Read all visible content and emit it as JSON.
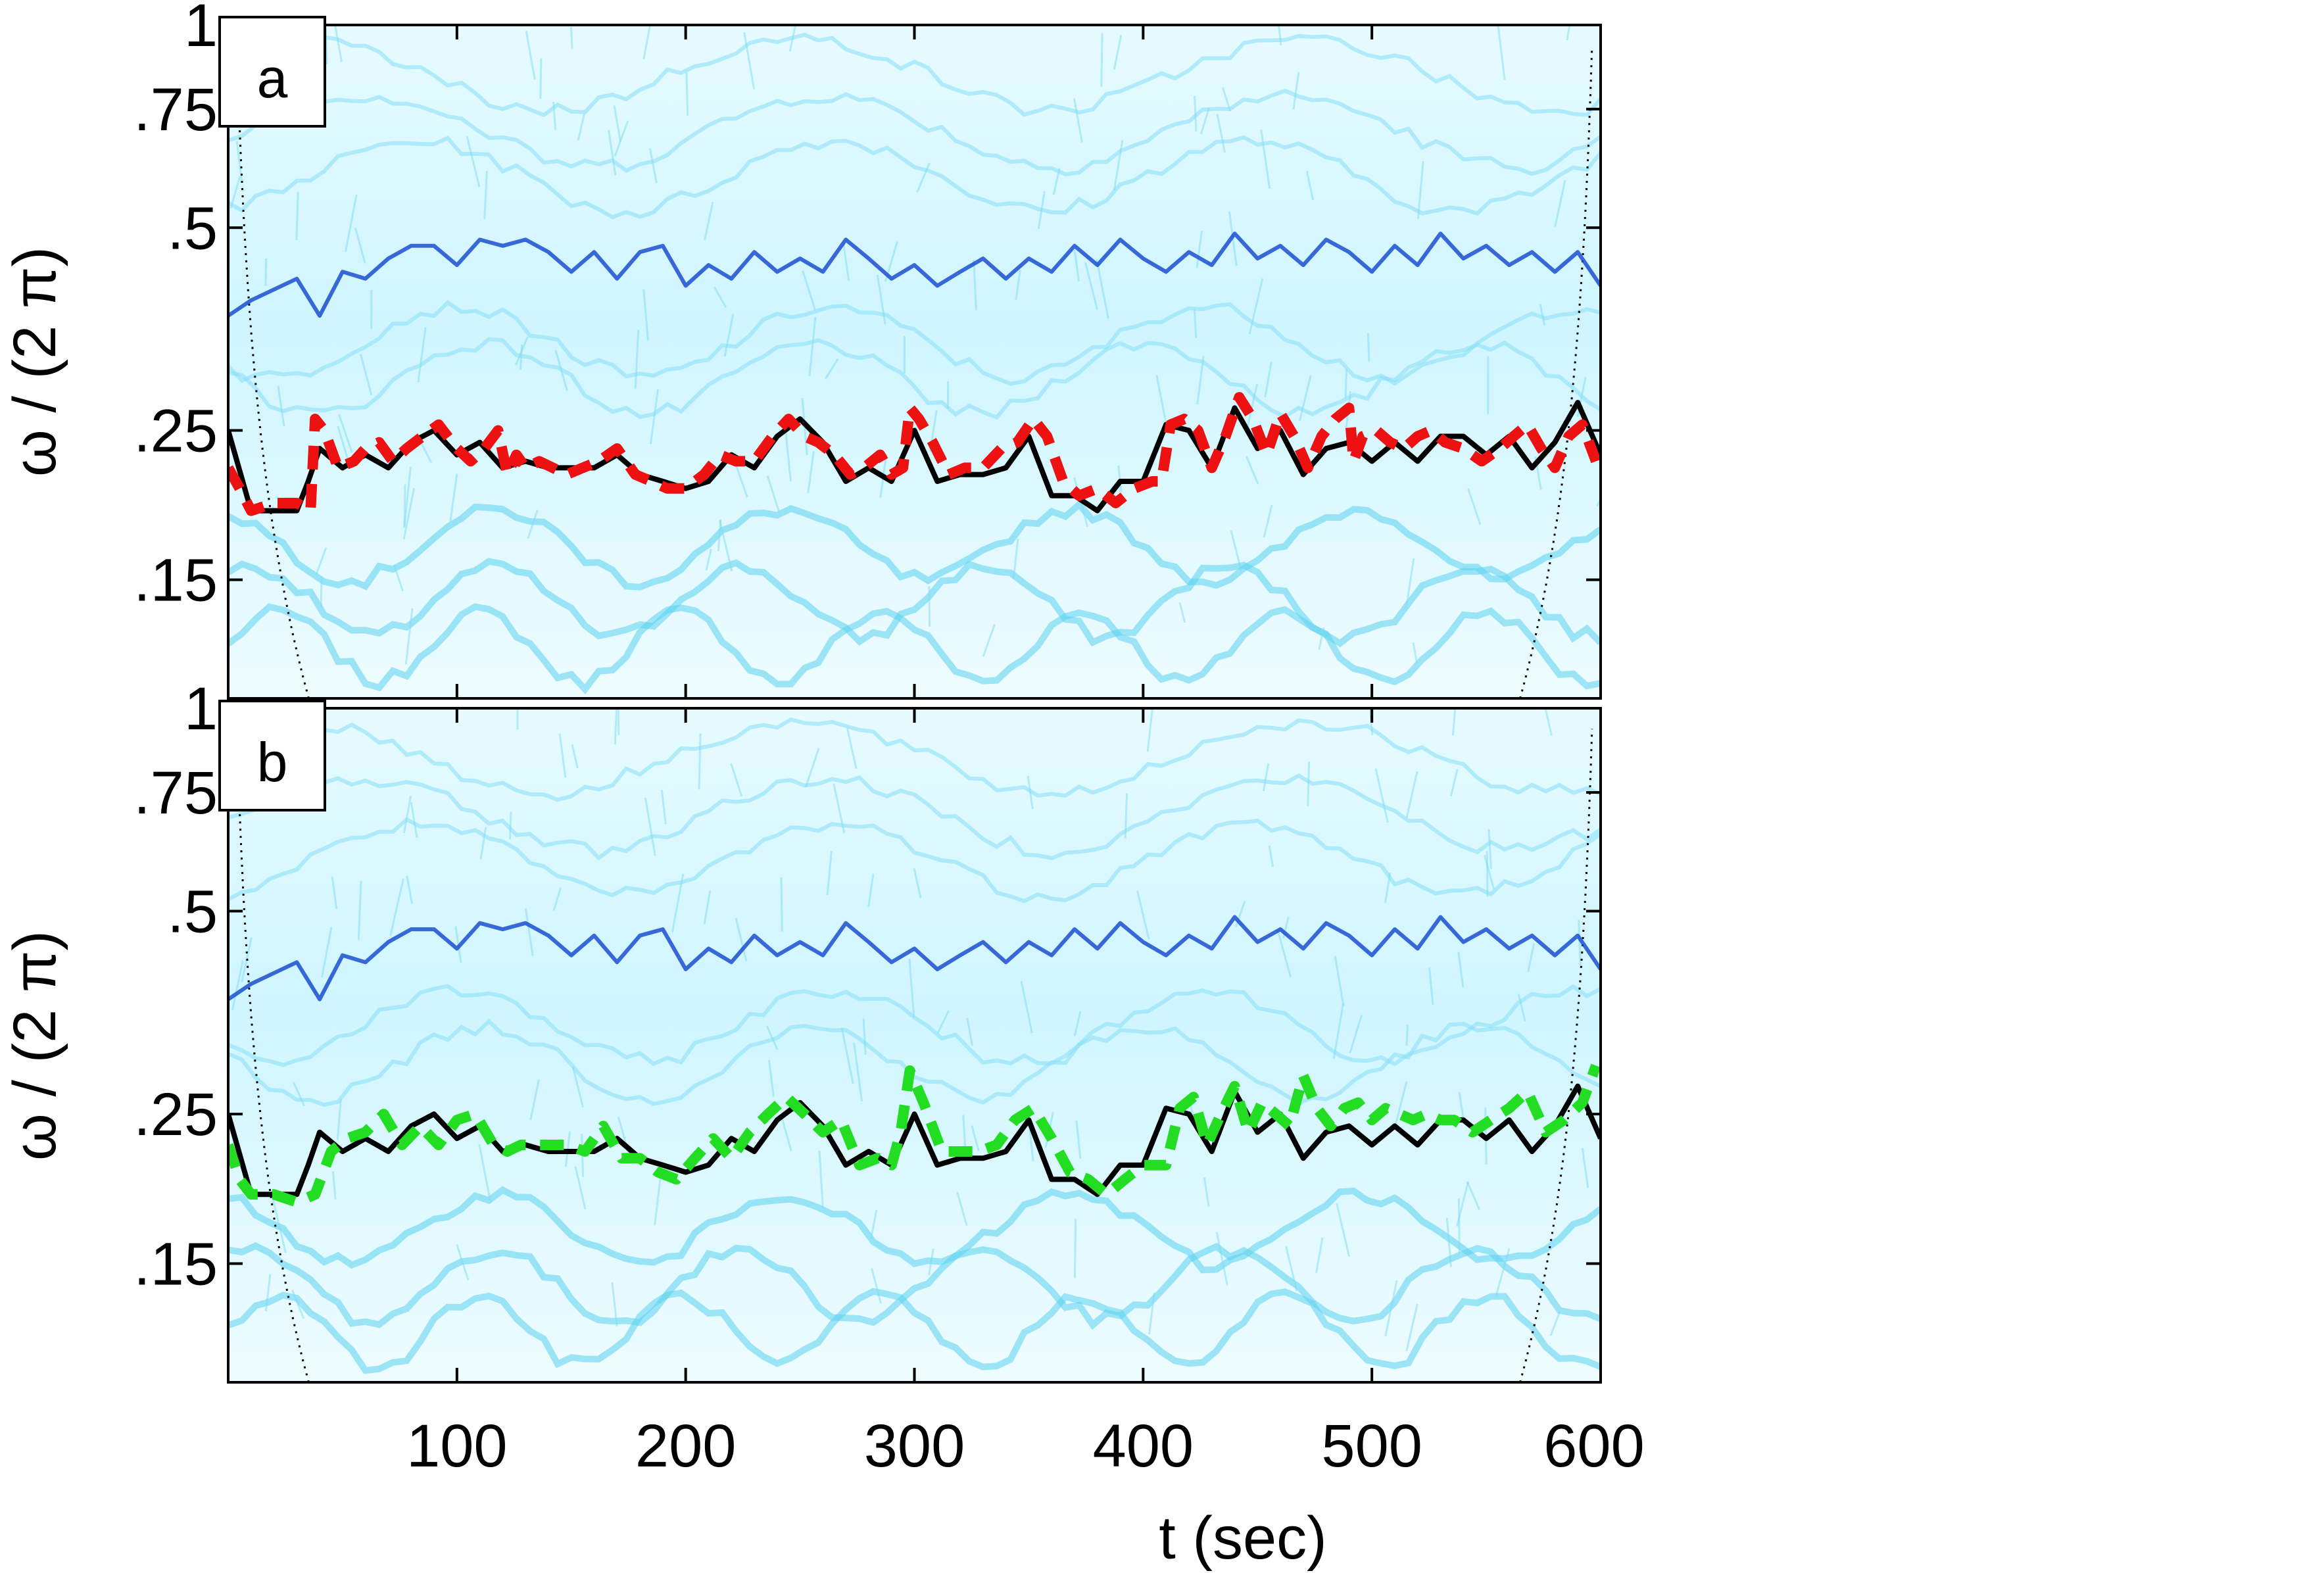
{
  "chart_data": {
    "type": "heatmap",
    "x_axis": {
      "label": "t (sec)",
      "range": [
        0,
        600
      ],
      "ticks": [
        100,
        200,
        300,
        400,
        500,
        600
      ],
      "tick_labels": [
        "100",
        "200",
        "300",
        "400",
        "500",
        "600"
      ]
    },
    "panels": [
      {
        "panel_label": "a",
        "ylabel": "ω / (2 π)",
        "y_scale": "log",
        "ylim": [
          0.1,
          1
        ],
        "yticks": [
          0.15,
          0.25,
          0.5,
          0.75,
          1
        ],
        "ytick_labels": [
          ".15",
          ".25",
          ".5",
          ".75",
          "1"
        ],
        "background": "time-frequency energy density (blue colormap)",
        "ridges": [
          {
            "role": "upper ridge",
            "color": "#1a4fd0",
            "style": "solid",
            "t": [
              0,
              10,
              30,
              40,
              50,
              60,
              70,
              80,
              90,
              100,
              110,
              120,
              130,
              140,
              150,
              160,
              170,
              180,
              190,
              200,
              210,
              220,
              230,
              240,
              250,
              260,
              270,
              280,
              290,
              300,
              310,
              320,
              330,
              340,
              350,
              360,
              370,
              380,
              390,
              400,
              410,
              420,
              430,
              440,
              450,
              460,
              470,
              480,
              490,
              500,
              510,
              520,
              530,
              540,
              550,
              560,
              570,
              580,
              590,
              600
            ],
            "omega": [
              0.37,
              0.39,
              0.42,
              0.37,
              0.43,
              0.42,
              0.45,
              0.47,
              0.47,
              0.44,
              0.48,
              0.47,
              0.48,
              0.46,
              0.43,
              0.46,
              0.42,
              0.46,
              0.47,
              0.41,
              0.44,
              0.42,
              0.46,
              0.43,
              0.45,
              0.43,
              0.48,
              0.45,
              0.42,
              0.44,
              0.41,
              0.43,
              0.45,
              0.42,
              0.45,
              0.43,
              0.47,
              0.44,
              0.48,
              0.45,
              0.43,
              0.46,
              0.44,
              0.49,
              0.45,
              0.47,
              0.44,
              0.48,
              0.46,
              0.43,
              0.47,
              0.44,
              0.49,
              0.45,
              0.47,
              0.44,
              0.46,
              0.43,
              0.46,
              0.41
            ]
          },
          {
            "role": "extracted ridge",
            "color": "#000000",
            "style": "solid",
            "t": [
              0,
              10,
              20,
              30,
              35,
              40,
              50,
              60,
              70,
              80,
              90,
              100,
              110,
              120,
              130,
              140,
              150,
              160,
              170,
              180,
              190,
              200,
              210,
              220,
              230,
              240,
              250,
              260,
              270,
              280,
              290,
              300,
              310,
              320,
              330,
              340,
              350,
              360,
              370,
              380,
              390,
              400,
              410,
              420,
              430,
              440,
              450,
              460,
              470,
              480,
              490,
              500,
              510,
              520,
              530,
              540,
              550,
              560,
              570,
              580,
              590,
              600
            ],
            "omega": [
              0.25,
              0.19,
              0.19,
              0.19,
              0.21,
              0.235,
              0.22,
              0.23,
              0.22,
              0.24,
              0.25,
              0.23,
              0.24,
              0.22,
              0.225,
              0.22,
              0.22,
              0.22,
              0.23,
              0.215,
              0.21,
              0.205,
              0.21,
              0.23,
              0.22,
              0.245,
              0.26,
              0.24,
              0.21,
              0.22,
              0.21,
              0.25,
              0.21,
              0.215,
              0.215,
              0.22,
              0.245,
              0.2,
              0.2,
              0.19,
              0.21,
              0.21,
              0.255,
              0.25,
              0.22,
              0.27,
              0.235,
              0.25,
              0.215,
              0.235,
              0.24,
              0.225,
              0.24,
              0.225,
              0.245,
              0.245,
              0.23,
              0.245,
              0.22,
              0.24,
              0.275,
              0.23
            ]
          },
          {
            "role": "estimate",
            "color": "#ee1111",
            "style": "dashed",
            "t": [
              0,
              5,
              10,
              20,
              30,
              36,
              38,
              42,
              48,
              55,
              60,
              66,
              72,
              78,
              85,
              92,
              100,
              106,
              112,
              118,
              122,
              126,
              130,
              136,
              142,
              148,
              155,
              162,
              170,
              178,
              185,
              192,
              200,
              208,
              215,
              222,
              230,
              238,
              245,
              252,
              258,
              265,
              272,
              278,
              285,
              290,
              295,
              298,
              302,
              308,
              315,
              322,
              330,
              338,
              345,
              352,
              358,
              365,
              372,
              380,
              388,
              396,
              404,
              408,
              412,
              418,
              424,
              430,
              436,
              442,
              448,
              454,
              460,
              466,
              472,
              478,
              484,
              490,
              492,
              496,
              502,
              508,
              514,
              520,
              526,
              532,
              540,
              548,
              556,
              562,
              568,
              574,
              580,
              586,
              592,
              598
            ],
            "omega": [
              0.22,
              0.205,
              0.19,
              0.195,
              0.195,
              0.19,
              0.26,
              0.25,
              0.22,
              0.225,
              0.235,
              0.24,
              0.225,
              0.235,
              0.245,
              0.255,
              0.235,
              0.225,
              0.235,
              0.25,
              0.215,
              0.23,
              0.22,
              0.225,
              0.22,
              0.215,
              0.22,
              0.225,
              0.235,
              0.215,
              0.21,
              0.205,
              0.205,
              0.215,
              0.23,
              0.225,
              0.225,
              0.245,
              0.26,
              0.245,
              0.24,
              0.23,
              0.215,
              0.22,
              0.23,
              0.215,
              0.22,
              0.27,
              0.26,
              0.24,
              0.215,
              0.22,
              0.22,
              0.235,
              0.24,
              0.26,
              0.245,
              0.21,
              0.2,
              0.205,
              0.195,
              0.205,
              0.21,
              0.21,
              0.255,
              0.26,
              0.25,
              0.22,
              0.245,
              0.28,
              0.26,
              0.23,
              0.265,
              0.245,
              0.22,
              0.245,
              0.26,
              0.27,
              0.225,
              0.245,
              0.25,
              0.24,
              0.235,
              0.245,
              0.25,
              0.24,
              0.235,
              0.225,
              0.235,
              0.245,
              0.255,
              0.235,
              0.22,
              0.245,
              0.255,
              0.225
            ]
          }
        ]
      },
      {
        "panel_label": "b",
        "ylabel": "ω / (2 π)",
        "y_scale": "log",
        "ylim": [
          0.1,
          1
        ],
        "yticks": [
          0.15,
          0.25,
          0.5,
          0.75,
          1
        ],
        "ytick_labels": [
          ".15",
          ".25",
          ".5",
          ".75",
          "1"
        ],
        "background": "time-frequency energy density (blue colormap)",
        "ridges": [
          {
            "role": "upper ridge",
            "color": "#1a4fd0",
            "style": "solid",
            "t": [
              0,
              10,
              30,
              40,
              50,
              60,
              70,
              80,
              90,
              100,
              110,
              120,
              130,
              140,
              150,
              160,
              170,
              180,
              190,
              200,
              210,
              220,
              230,
              240,
              250,
              260,
              270,
              280,
              290,
              300,
              310,
              320,
              330,
              340,
              350,
              360,
              370,
              380,
              390,
              400,
              410,
              420,
              430,
              440,
              450,
              460,
              470,
              480,
              490,
              500,
              510,
              520,
              530,
              540,
              550,
              560,
              570,
              580,
              590,
              600
            ],
            "omega": [
              0.37,
              0.39,
              0.42,
              0.37,
              0.43,
              0.42,
              0.45,
              0.47,
              0.47,
              0.44,
              0.48,
              0.47,
              0.48,
              0.46,
              0.43,
              0.46,
              0.42,
              0.46,
              0.47,
              0.41,
              0.44,
              0.42,
              0.46,
              0.43,
              0.45,
              0.43,
              0.48,
              0.45,
              0.42,
              0.44,
              0.41,
              0.43,
              0.45,
              0.42,
              0.45,
              0.43,
              0.47,
              0.44,
              0.48,
              0.45,
              0.43,
              0.46,
              0.44,
              0.49,
              0.45,
              0.47,
              0.44,
              0.48,
              0.46,
              0.43,
              0.47,
              0.44,
              0.49,
              0.45,
              0.47,
              0.44,
              0.46,
              0.43,
              0.46,
              0.41
            ]
          },
          {
            "role": "extracted ridge",
            "color": "#000000",
            "style": "solid",
            "t": [
              0,
              10,
              20,
              30,
              35,
              40,
              50,
              60,
              70,
              80,
              90,
              100,
              110,
              120,
              130,
              140,
              150,
              160,
              170,
              180,
              190,
              200,
              210,
              220,
              230,
              240,
              250,
              260,
              270,
              280,
              290,
              300,
              310,
              320,
              330,
              340,
              350,
              360,
              370,
              380,
              390,
              400,
              410,
              420,
              430,
              440,
              450,
              460,
              470,
              480,
              490,
              500,
              510,
              520,
              530,
              540,
              550,
              560,
              570,
              580,
              590,
              600
            ],
            "omega": [
              0.25,
              0.19,
              0.19,
              0.19,
              0.21,
              0.235,
              0.22,
              0.23,
              0.22,
              0.24,
              0.25,
              0.23,
              0.24,
              0.22,
              0.225,
              0.22,
              0.22,
              0.22,
              0.23,
              0.215,
              0.21,
              0.205,
              0.21,
              0.23,
              0.22,
              0.245,
              0.26,
              0.24,
              0.21,
              0.22,
              0.21,
              0.25,
              0.21,
              0.215,
              0.215,
              0.22,
              0.245,
              0.2,
              0.2,
              0.19,
              0.21,
              0.21,
              0.255,
              0.25,
              0.22,
              0.27,
              0.235,
              0.25,
              0.215,
              0.235,
              0.24,
              0.225,
              0.24,
              0.225,
              0.245,
              0.245,
              0.23,
              0.245,
              0.22,
              0.24,
              0.275,
              0.23
            ]
          },
          {
            "role": "estimate",
            "color": "#22dd22",
            "style": "dashed",
            "t": [
              0,
              5,
              10,
              20,
              30,
              38,
              45,
              52,
              60,
              68,
              76,
              84,
              92,
              100,
              108,
              116,
              122,
              128,
              134,
              140,
              148,
              156,
              164,
              172,
              180,
              188,
              196,
              204,
              212,
              220,
              228,
              236,
              244,
              252,
              260,
              268,
              276,
              284,
              290,
              294,
              298,
              304,
              312,
              320,
              328,
              336,
              344,
              352,
              360,
              368,
              376,
              384,
              392,
              400,
              410,
              416,
              422,
              428,
              434,
              440,
              446,
              452,
              458,
              464,
              470,
              476,
              482,
              488,
              494,
              500,
              506,
              512,
              518,
              524,
              530,
              536,
              544,
              552,
              560,
              568,
              576,
              584,
              592,
              598
            ],
            "omega": [
              0.225,
              0.2,
              0.19,
              0.19,
              0.185,
              0.19,
              0.22,
              0.23,
              0.235,
              0.25,
              0.225,
              0.24,
              0.225,
              0.245,
              0.25,
              0.225,
              0.22,
              0.225,
              0.225,
              0.225,
              0.225,
              0.22,
              0.24,
              0.215,
              0.215,
              0.205,
              0.2,
              0.215,
              0.23,
              0.215,
              0.235,
              0.25,
              0.265,
              0.25,
              0.235,
              0.245,
              0.21,
              0.215,
              0.21,
              0.235,
              0.29,
              0.26,
              0.22,
              0.22,
              0.22,
              0.225,
              0.245,
              0.255,
              0.23,
              0.205,
              0.2,
              0.19,
              0.2,
              0.21,
              0.21,
              0.255,
              0.265,
              0.225,
              0.25,
              0.275,
              0.235,
              0.26,
              0.25,
              0.24,
              0.285,
              0.255,
              0.24,
              0.255,
              0.26,
              0.245,
              0.255,
              0.25,
              0.245,
              0.25,
              0.245,
              0.245,
              0.235,
              0.245,
              0.255,
              0.27,
              0.235,
              0.245,
              0.26,
              0.295
            ]
          }
        ]
      }
    ]
  }
}
